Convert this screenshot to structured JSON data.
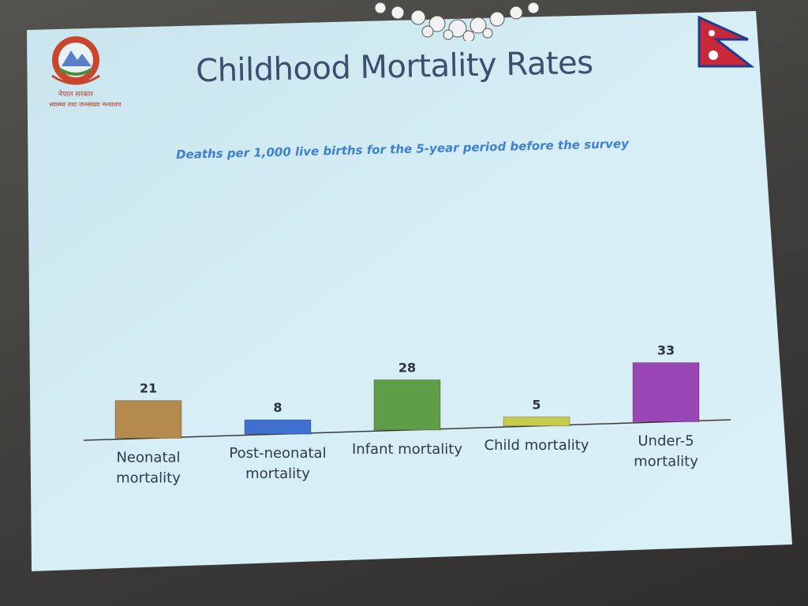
{
  "slide": {
    "title": "Childhood Mortality Rates",
    "subtitle": "Deaths per 1,000 live births for the 5-year period before the survey",
    "logo_caption_line1": "नेपाल सरकार",
    "logo_caption_line2": "स्वास्थ्य तथा जनसंख्या मन्त्रालय"
  },
  "colors": {
    "slide_bg": "#cfe9f2",
    "title": "#3d4f6e",
    "subtitle": "#3f7fd0",
    "axis": "#3a3a3a",
    "label": "#2f3a4d"
  },
  "chart_data": {
    "type": "bar",
    "categories": [
      [
        "Neonatal",
        "mortality"
      ],
      [
        "Post-neonatal",
        "mortality"
      ],
      [
        "Infant mortality"
      ],
      [
        "Child mortality"
      ],
      [
        "Under-5",
        "mortality"
      ]
    ],
    "values": [
      21,
      8,
      28,
      5,
      33
    ],
    "bar_colors": [
      "#b58a4e",
      "#3f6fcf",
      "#5f9d48",
      "#c7cb4a",
      "#9a45b6"
    ],
    "ylim": [
      0,
      35
    ],
    "grid": false,
    "legend": "none",
    "data_labels": true
  }
}
